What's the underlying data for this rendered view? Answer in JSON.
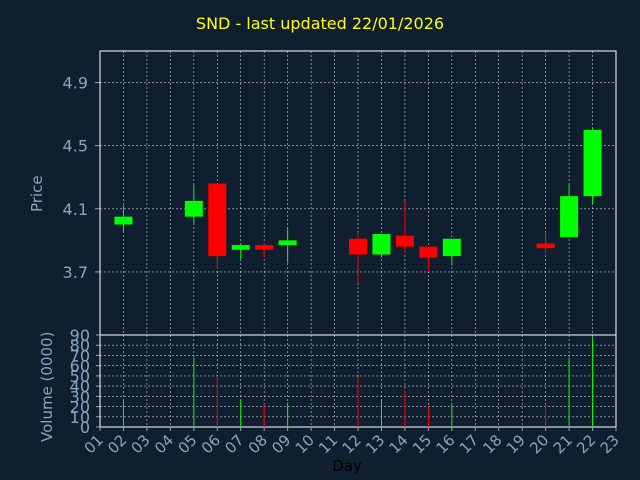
{
  "title": "SND - last updated 22/01/2026",
  "colors": {
    "background": "#0f1f2f",
    "plot_background": "#0f1f2f",
    "grid": "#ffffff",
    "axis_text": "#8aa3c2",
    "title": "#ffff00",
    "up": "#00ff00",
    "down": "#ff0000"
  },
  "chart_data": [
    {
      "type": "candlestick",
      "ylabel": "Price",
      "ylim": [
        3.3,
        5.1
      ],
      "yticks": [
        "3.7",
        "4.1",
        "4.5",
        "4.9"
      ],
      "grid": true,
      "x_categories": [
        "01",
        "02",
        "03",
        "04",
        "05",
        "06",
        "07",
        "08",
        "09",
        "10",
        "11",
        "12",
        "13",
        "14",
        "15",
        "16",
        "17",
        "18",
        "19",
        "20",
        "21",
        "22",
        "23"
      ],
      "candles": [
        {
          "day": "02",
          "open": 4.0,
          "high": 4.12,
          "low": 3.95,
          "close": 4.05
        },
        {
          "day": "05",
          "open": 4.05,
          "high": 4.25,
          "low": 4.0,
          "close": 4.15
        },
        {
          "day": "06",
          "open": 4.26,
          "high": 4.26,
          "low": 3.72,
          "close": 3.8
        },
        {
          "day": "07",
          "open": 3.84,
          "high": 3.88,
          "low": 3.78,
          "close": 3.87
        },
        {
          "day": "08",
          "open": 3.87,
          "high": 3.88,
          "low": 3.79,
          "close": 3.84
        },
        {
          "day": "09",
          "open": 3.87,
          "high": 3.98,
          "low": 3.76,
          "close": 3.9
        },
        {
          "day": "12",
          "open": 3.91,
          "high": 3.95,
          "low": 3.63,
          "close": 3.81
        },
        {
          "day": "13",
          "open": 3.81,
          "high": 3.94,
          "low": 3.79,
          "close": 3.94
        },
        {
          "day": "14",
          "open": 3.93,
          "high": 4.15,
          "low": 3.82,
          "close": 3.86
        },
        {
          "day": "15",
          "open": 3.86,
          "high": 3.86,
          "low": 3.7,
          "close": 3.79
        },
        {
          "day": "16",
          "open": 3.8,
          "high": 3.9,
          "low": 3.74,
          "close": 3.91
        },
        {
          "day": "20",
          "open": 3.88,
          "high": 3.95,
          "low": 3.82,
          "close": 3.85
        },
        {
          "day": "21",
          "open": 3.92,
          "high": 4.26,
          "low": 3.92,
          "close": 4.18
        },
        {
          "day": "22",
          "open": 4.18,
          "high": 4.61,
          "low": 4.13,
          "close": 4.6
        }
      ]
    },
    {
      "type": "bar",
      "ylabel": "Volume (0000)",
      "xlabel": "Day",
      "ylim": [
        0,
        90
      ],
      "yticks": [
        "0",
        "10",
        "20",
        "30",
        "40",
        "50",
        "60",
        "70",
        "80",
        "90"
      ],
      "grid": true,
      "categories": [
        "01",
        "02",
        "03",
        "04",
        "05",
        "06",
        "07",
        "08",
        "09",
        "10",
        "11",
        "12",
        "13",
        "14",
        "15",
        "16",
        "17",
        "18",
        "19",
        "20",
        "21",
        "22",
        "23"
      ],
      "bars": [
        {
          "day": "02",
          "value": 26,
          "direction": "up"
        },
        {
          "day": "05",
          "value": 68,
          "direction": "up"
        },
        {
          "day": "06",
          "value": 50,
          "direction": "down"
        },
        {
          "day": "07",
          "value": 27,
          "direction": "up"
        },
        {
          "day": "08",
          "value": 22,
          "direction": "down"
        },
        {
          "day": "09",
          "value": 24,
          "direction": "up"
        },
        {
          "day": "12",
          "value": 49,
          "direction": "down"
        },
        {
          "day": "13",
          "value": 27,
          "direction": "up"
        },
        {
          "day": "14",
          "value": 36,
          "direction": "down"
        },
        {
          "day": "15",
          "value": 21,
          "direction": "down"
        },
        {
          "day": "16",
          "value": 22,
          "direction": "up"
        },
        {
          "day": "20",
          "value": 22,
          "direction": "down"
        },
        {
          "day": "21",
          "value": 68,
          "direction": "up"
        },
        {
          "day": "22",
          "value": 88,
          "direction": "up"
        }
      ]
    }
  ]
}
